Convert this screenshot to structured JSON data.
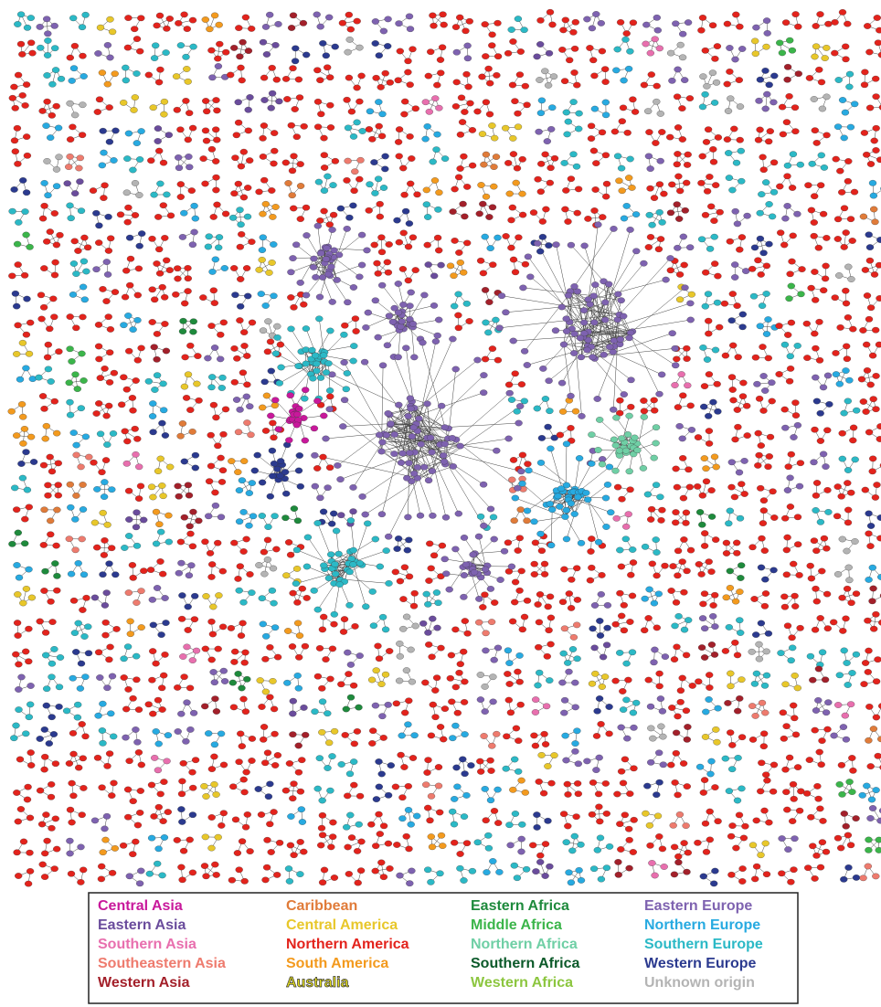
{
  "legend": {
    "items": [
      {
        "label": "Central Asia",
        "color": "#c8189b"
      },
      {
        "label": "Eastern Asia",
        "color": "#6a4c9c"
      },
      {
        "label": "Southern Asia",
        "color": "#e86fae"
      },
      {
        "label": "Southeastern Asia",
        "color": "#ee7b6e"
      },
      {
        "label": "Western Asia",
        "color": "#a3202a"
      },
      {
        "label": "Caribbean",
        "color": "#e07b39"
      },
      {
        "label": "Central America",
        "color": "#e8c72a"
      },
      {
        "label": "Northern America",
        "color": "#e3231c"
      },
      {
        "label": "South America",
        "color": "#f39a1e"
      },
      {
        "label": "Australia",
        "color": "#e2dc1e"
      },
      {
        "label": "Eastern Africa",
        "color": "#1e8a3c"
      },
      {
        "label": "Middle Africa",
        "color": "#3bb54a"
      },
      {
        "label": "Northern Africa",
        "color": "#6fcfa5"
      },
      {
        "label": "Southern Africa",
        "color": "#0c5a2a"
      },
      {
        "label": "Western Africa",
        "color": "#8cc63f"
      },
      {
        "label": "Eastern Europe",
        "color": "#7e62b0"
      },
      {
        "label": "Northern Europe",
        "color": "#27aae1"
      },
      {
        "label": "Southern Europe",
        "color": "#2bb9c6"
      },
      {
        "label": "Western Europe",
        "color": "#2b3a8f"
      },
      {
        "label": "Unknown origin",
        "color": "#b4b4b4"
      }
    ]
  }
}
